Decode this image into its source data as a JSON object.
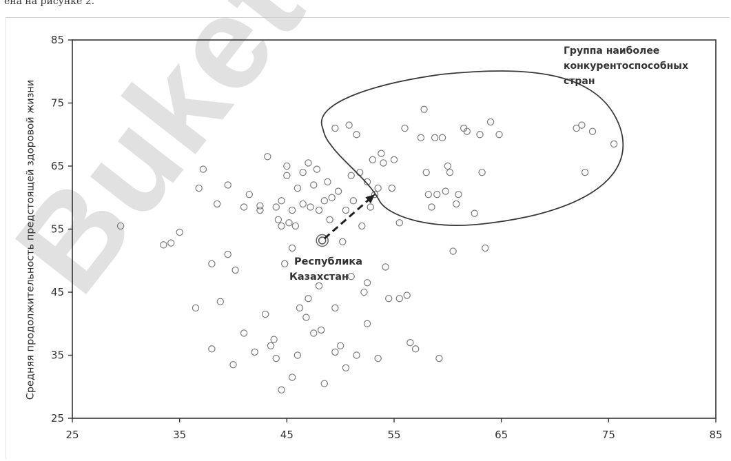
{
  "page": {
    "top_text": "ена на рисунке 2."
  },
  "watermark": {
    "text": "Buketov"
  },
  "chart_data": {
    "type": "scatter",
    "title": "",
    "xlabel": "",
    "ylabel": "Средняя продолжительность предстоящей здоровой жизни",
    "xlim": [
      25,
      85
    ],
    "ylim": [
      25,
      85
    ],
    "x_ticks": [
      "25",
      "35",
      "45",
      "55",
      "65",
      "75",
      "85"
    ],
    "y_ticks": [
      "25",
      "35",
      "45",
      "55",
      "65",
      "75",
      "85"
    ],
    "grid": false,
    "annotations": [
      {
        "text_lines": [
          "Группа наиболее",
          "конкурентоспособных",
          "стран"
        ]
      },
      {
        "text_lines": [
          "Республика",
          "Казахстан"
        ]
      }
    ],
    "highlight": {
      "name": "Республика Казахстан",
      "x": 48.3,
      "y": 53.2
    },
    "arrow": {
      "from": [
        48.5,
        53.5
      ],
      "to": [
        53.2,
        60.5
      ]
    },
    "points": [
      [
        29.5,
        55.5
      ],
      [
        33.5,
        52.5
      ],
      [
        34.2,
        52.8
      ],
      [
        35.0,
        54.5
      ],
      [
        36.5,
        42.5
      ],
      [
        36.8,
        61.5
      ],
      [
        37.2,
        64.5
      ],
      [
        38.0,
        49.5
      ],
      [
        38.5,
        59.0
      ],
      [
        38.8,
        43.5
      ],
      [
        39.5,
        62.0
      ],
      [
        39.5,
        51.0
      ],
      [
        40.2,
        48.5
      ],
      [
        41.0,
        58.5
      ],
      [
        41.5,
        60.5
      ],
      [
        42.5,
        58.0
      ],
      [
        42.5,
        58.7
      ],
      [
        43.0,
        41.5
      ],
      [
        43.2,
        66.5
      ],
      [
        43.5,
        36.5
      ],
      [
        43.8,
        37.5
      ],
      [
        44.0,
        58.5
      ],
      [
        44.2,
        56.5
      ],
      [
        44.5,
        59.5
      ],
      [
        44.5,
        55.5
      ],
      [
        44.8,
        49.5
      ],
      [
        45.0,
        65.0
      ],
      [
        45.0,
        63.5
      ],
      [
        45.2,
        56.0
      ],
      [
        45.5,
        58.0
      ],
      [
        45.5,
        52.0
      ],
      [
        45.8,
        55.5
      ],
      [
        46.0,
        61.5
      ],
      [
        46.2,
        42.5
      ],
      [
        46.5,
        64.0
      ],
      [
        46.5,
        59.0
      ],
      [
        46.8,
        41.0
      ],
      [
        47.0,
        65.5
      ],
      [
        47.2,
        58.5
      ],
      [
        47.5,
        62.0
      ],
      [
        47.8,
        64.5
      ],
      [
        48.0,
        58.0
      ],
      [
        48.2,
        39.0
      ],
      [
        48.5,
        59.5
      ],
      [
        48.8,
        62.5
      ],
      [
        49.0,
        56.5
      ],
      [
        49.2,
        60.0
      ],
      [
        49.5,
        42.5
      ],
      [
        49.5,
        71.0
      ],
      [
        49.8,
        61.0
      ],
      [
        50.0,
        36.5
      ],
      [
        50.2,
        53.0
      ],
      [
        50.5,
        58.0
      ],
      [
        50.8,
        71.5
      ],
      [
        51.0,
        63.5
      ],
      [
        51.2,
        59.5
      ],
      [
        51.5,
        70.0
      ],
      [
        51.8,
        64.0
      ],
      [
        52.0,
        55.5
      ],
      [
        52.2,
        45.0
      ],
      [
        52.5,
        62.5
      ],
      [
        52.8,
        58.5
      ],
      [
        53.0,
        66.0
      ],
      [
        53.2,
        60.5
      ],
      [
        53.5,
        61.5
      ],
      [
        53.8,
        67.0
      ],
      [
        54.0,
        65.5
      ],
      [
        54.2,
        49.0
      ],
      [
        54.5,
        44.0
      ],
      [
        54.8,
        61.5
      ],
      [
        55.0,
        66.0
      ],
      [
        55.5,
        56.0
      ],
      [
        56.0,
        71.0
      ],
      [
        56.2,
        44.5
      ],
      [
        56.5,
        37.0
      ],
      [
        57.0,
        36.0
      ],
      [
        57.5,
        69.5
      ],
      [
        57.8,
        74.0
      ],
      [
        58.0,
        64.0
      ],
      [
        58.2,
        60.5
      ],
      [
        58.5,
        58.5
      ],
      [
        58.8,
        69.5
      ],
      [
        59.0,
        60.5
      ],
      [
        59.2,
        34.5
      ],
      [
        59.5,
        69.5
      ],
      [
        59.8,
        61.0
      ],
      [
        60.0,
        65.0
      ],
      [
        60.2,
        64.0
      ],
      [
        60.5,
        51.5
      ],
      [
        60.8,
        59.0
      ],
      [
        61.0,
        60.5
      ],
      [
        61.5,
        71.0
      ],
      [
        61.8,
        70.5
      ],
      [
        62.5,
        57.5
      ],
      [
        63.0,
        70.0
      ],
      [
        63.2,
        64.0
      ],
      [
        63.5,
        52.0
      ],
      [
        64.0,
        72.0
      ],
      [
        64.8,
        70.0
      ],
      [
        72.0,
        71.0
      ],
      [
        72.5,
        71.5
      ],
      [
        72.8,
        64.0
      ],
      [
        73.5,
        70.5
      ],
      [
        75.5,
        68.5
      ],
      [
        41.0,
        38.5
      ],
      [
        42.0,
        35.5
      ],
      [
        38.0,
        36.0
      ],
      [
        40.0,
        33.5
      ],
      [
        44.0,
        34.5
      ],
      [
        45.5,
        31.5
      ],
      [
        46.0,
        35.0
      ],
      [
        47.5,
        38.5
      ],
      [
        48.5,
        30.5
      ],
      [
        49.5,
        35.5
      ],
      [
        50.5,
        33.0
      ],
      [
        51.5,
        35.0
      ],
      [
        52.5,
        40.0
      ],
      [
        53.5,
        34.5
      ],
      [
        55.5,
        44.0
      ],
      [
        44.5,
        29.5
      ],
      [
        47.0,
        44.0
      ],
      [
        48.0,
        46.0
      ],
      [
        51.0,
        47.5
      ],
      [
        52.5,
        46.5
      ]
    ]
  }
}
